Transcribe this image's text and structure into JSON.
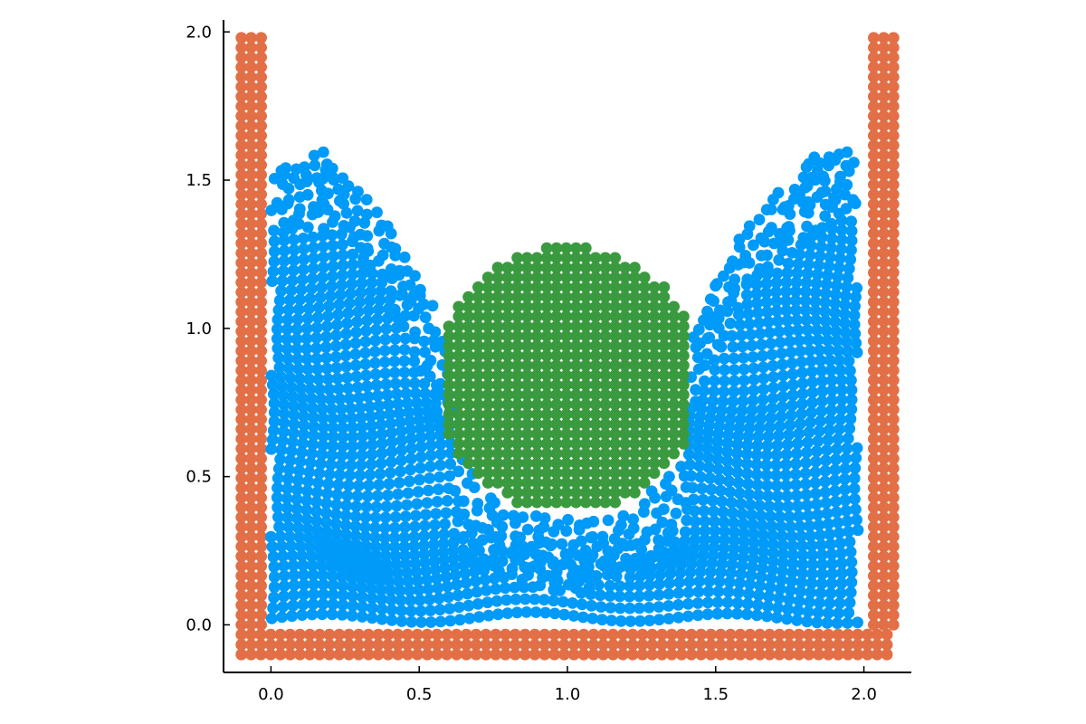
{
  "colors": {
    "background": "#ffffff",
    "axis": "#000000",
    "tick_label": "#000000"
  },
  "chart_data": {
    "type": "scatter",
    "title": "",
    "xlabel": "",
    "ylabel": "",
    "xlim": [
      -0.16,
      2.16
    ],
    "ylim": [
      -0.16,
      2.04
    ],
    "aspect": "equal",
    "grid": false,
    "legend": "none",
    "x_ticks": [
      0.0,
      0.5,
      1.0,
      1.5,
      2.0
    ],
    "x_tick_labels": [
      "0.0",
      "0.5",
      "1.0",
      "1.5",
      "2.0"
    ],
    "y_ticks": [
      0.0,
      0.5,
      1.0,
      1.5,
      2.0
    ],
    "y_tick_labels": [
      "0.0",
      "0.5",
      "1.0",
      "1.5",
      "2.0"
    ],
    "particle_spacing": 0.033,
    "series": [
      {
        "color": "#e26f46",
        "marker": "circle",
        "shape": "wall particles: left column x in [-0.1,-0.033], right column x in [2.033,2.1] for y in [0,2]; floor rows y in [-0.1,-0.033] for x in [-0.1,2.1]",
        "left_wall_x": [
          -0.1,
          -0.067,
          -0.033
        ],
        "right_wall_x": [
          2.033,
          2.067,
          2.1
        ],
        "wall_y_range": [
          0.0,
          1.98
        ],
        "floor_y": [
          -0.1,
          -0.067,
          -0.033
        ],
        "floor_x_range": [
          -0.1,
          2.1
        ]
      },
      {
        "color": "#009af9",
        "marker": "circle",
        "shape": "fluid particles x in [0,1.97], surface profile given by free_surface, cavity around the green body",
        "x_range": [
          0.0,
          1.97
        ],
        "free_surface": {
          "x": [
            0.0,
            0.05,
            0.1,
            0.15,
            0.2,
            0.25,
            0.3,
            0.35,
            0.4,
            0.45,
            0.5,
            0.55,
            0.6,
            1.4,
            1.45,
            1.5,
            1.55,
            1.6,
            1.65,
            1.7,
            1.75,
            1.8,
            1.85,
            1.9,
            1.95,
            1.97
          ],
          "y": [
            1.55,
            1.58,
            1.57,
            1.58,
            1.6,
            1.55,
            1.47,
            1.44,
            1.38,
            1.25,
            1.15,
            1.05,
            0.95,
            0.95,
            1.05,
            1.15,
            1.25,
            1.35,
            1.43,
            1.45,
            1.5,
            1.55,
            1.6,
            1.62,
            1.62,
            1.6
          ]
        }
      },
      {
        "color": "#3a9a3f",
        "marker": "circle",
        "shape": "rigid body: disc of radius 0.45 centred at (1.0, 0.83), clipped to x in [0.6,1.4]",
        "center": [
          1.0,
          0.83
        ],
        "radius": 0.45,
        "x_clip": [
          0.6,
          1.4
        ]
      }
    ]
  }
}
